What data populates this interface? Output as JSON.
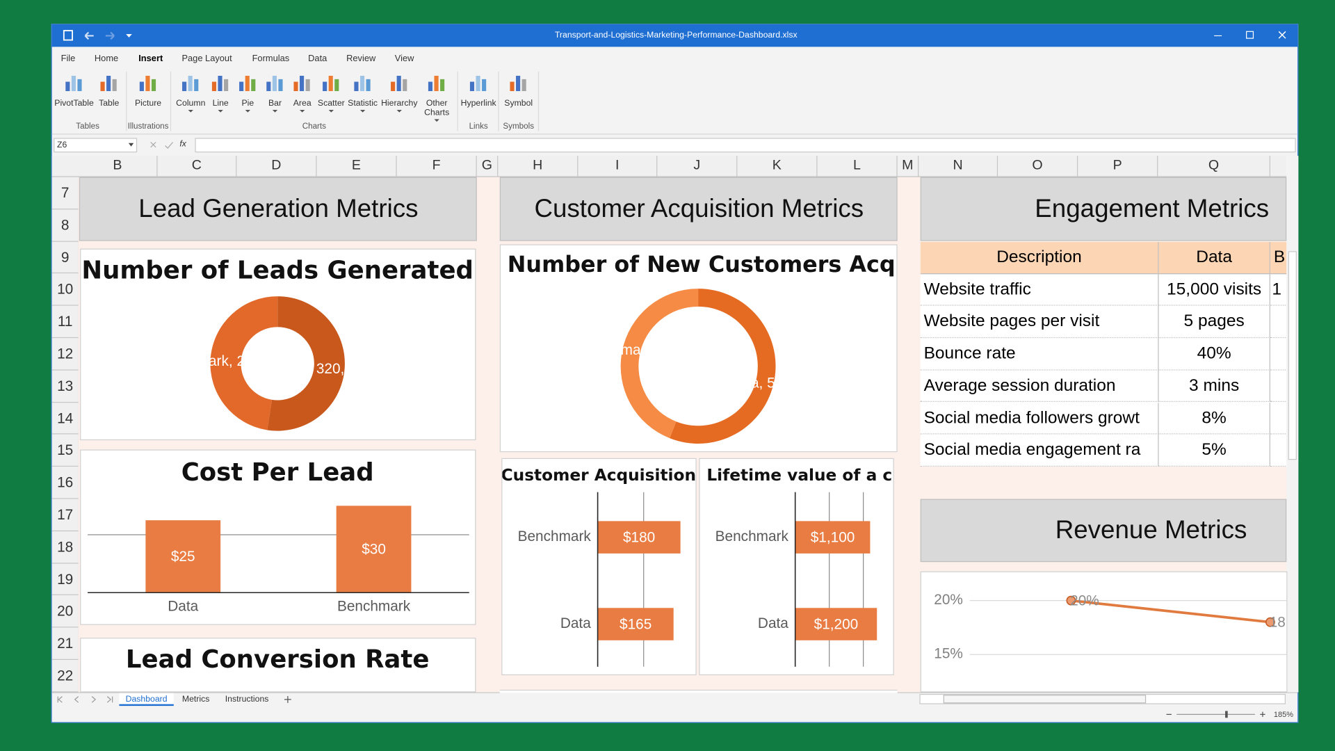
{
  "window": {
    "title": "Transport-and-Logistics-Marketing-Performance-Dashboard.xlsx"
  },
  "ribbon": {
    "tabs": [
      "File",
      "Home",
      "Insert",
      "Page Layout",
      "Formulas",
      "Data",
      "Review",
      "View"
    ],
    "active_tab": 2,
    "groups": [
      {
        "label": "Tables",
        "buttons": [
          "PivotTable",
          "Table"
        ]
      },
      {
        "label": "Illustrations",
        "buttons": [
          "Picture"
        ]
      },
      {
        "label": "Charts",
        "buttons": [
          "Column",
          "Line",
          "Pie",
          "Bar",
          "Area",
          "Scatter",
          "Statistic",
          "Hierarchy",
          "Other Charts"
        ]
      },
      {
        "label": "Links",
        "buttons": [
          "Hyperlink"
        ]
      },
      {
        "label": "Symbols",
        "buttons": [
          "Symbol"
        ]
      }
    ]
  },
  "formula_bar": {
    "name_box": "Z6",
    "function_label": "fx"
  },
  "columns": [
    "B",
    "C",
    "D",
    "E",
    "F",
    "G",
    "H",
    "I",
    "J",
    "K",
    "L",
    "M",
    "N",
    "O",
    "P",
    "Q"
  ],
  "rows": [
    "7",
    "8",
    "9",
    "10",
    "11",
    "12",
    "13",
    "14",
    "15",
    "16",
    "17",
    "18",
    "19",
    "20",
    "21",
    "22"
  ],
  "sections": [
    "Lead Generation Metrics",
    "Customer Acquisition Metrics",
    "Engagement Metrics",
    "Revenue Metrics"
  ],
  "engagement_table": {
    "header": [
      "Description",
      "Data",
      "B"
    ],
    "rows": [
      [
        "Website traffic",
        "15,000 visits",
        "1"
      ],
      [
        "Website pages per visit",
        "5 pages"
      ],
      [
        "Bounce rate",
        "40%"
      ],
      [
        "Average session duration",
        "3 mins"
      ],
      [
        "Social media followers growt",
        "8%"
      ],
      [
        "Social media engagement ra",
        "5%"
      ]
    ]
  },
  "chart_data": [
    {
      "type": "pie",
      "title": "Number of Leads Generated",
      "values": [
        320,
        290
      ],
      "value_labels": [
        ", 320,",
        "ark, 2"
      ],
      "colors": [
        "#c9581d",
        "#e2692a"
      ]
    },
    {
      "type": "pie",
      "title": "Number of New Customers Acqui",
      "values": [
        560,
        440
      ],
      "value_labels": [
        "a, 5",
        "mar"
      ],
      "colors": [
        "#e56b23",
        "#f58b45"
      ]
    },
    {
      "type": "bar",
      "title": "Cost Per Lead",
      "categories": [
        "Data",
        "Benchmark"
      ],
      "values": [
        25,
        30
      ],
      "value_labels": [
        "$25",
        "$30"
      ],
      "color": "#e97c42",
      "ylim": [
        0,
        40
      ],
      "yticks": [
        0,
        20
      ],
      "grid": true
    },
    {
      "type": "barh",
      "title": "Customer Acquisition",
      "categories": [
        "Benchmark",
        "Data"
      ],
      "values": [
        180,
        165
      ],
      "value_labels": [
        "$180",
        "$165"
      ],
      "color": "#e97c42",
      "xlim": [
        0,
        200
      ],
      "xticks": [
        0,
        100
      ],
      "grid": true
    },
    {
      "type": "barh",
      "title": "Lifetime value of a cu",
      "categories": [
        "Benchmark",
        "Data"
      ],
      "values": [
        1100,
        1200
      ],
      "value_labels": [
        "$1,100",
        "$1,200"
      ],
      "color": "#e97c42",
      "xlim": [
        0,
        1400
      ],
      "xticks": [
        0,
        500,
        1000
      ],
      "grid": true
    },
    {
      "type": "line",
      "categories": [
        null,
        null
      ],
      "values": [
        20,
        18
      ],
      "value_labels": [
        "20%",
        "18"
      ],
      "color": "#e07a3f",
      "ylim": [
        11.5,
        22
      ],
      "yticks": [
        {
          "value": 20,
          "label": "20%"
        },
        {
          "value": 15,
          "label": "15%"
        }
      ],
      "grid": true
    },
    {
      "type": "panel",
      "title": "Lead Conversion Rate"
    }
  ],
  "sheets": [
    "Dashboard",
    "Metrics",
    "Instructions"
  ],
  "active_sheet": 0,
  "zoom": "185%"
}
